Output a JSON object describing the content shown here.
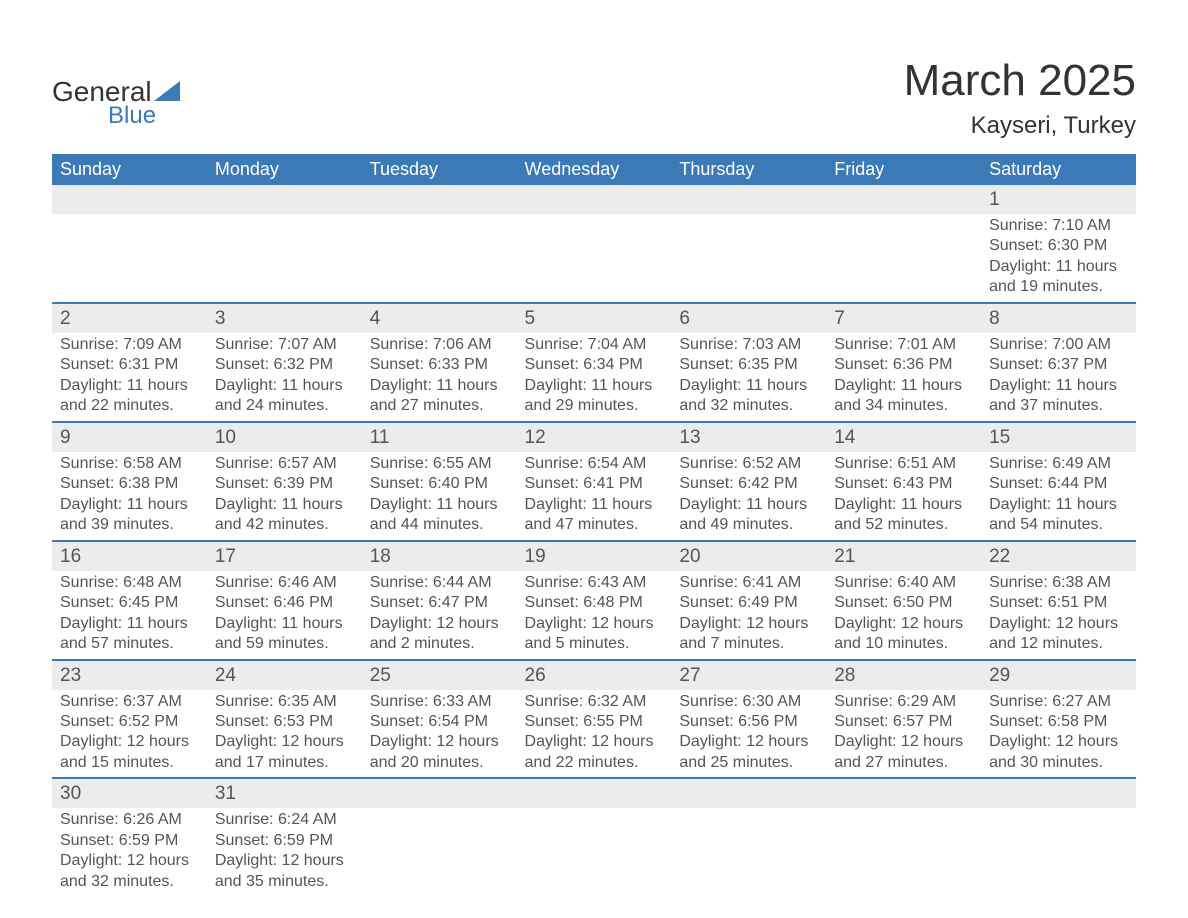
{
  "brand": {
    "name1": "General",
    "name2": "Blue"
  },
  "title": "March 2025",
  "location": "Kayseri, Turkey",
  "colors": {
    "header_bg": "#3b79b7",
    "header_text": "#ffffff",
    "daynum_bg": "#ececec",
    "border": "#3b79b7",
    "text": "#555555",
    "title_text": "#333333",
    "page_bg": "#ffffff"
  },
  "fonts": {
    "title_size": 44,
    "location_size": 24,
    "dayheader_size": 18,
    "daynum_size": 19,
    "body_size": 16
  },
  "day_headers": [
    "Sunday",
    "Monday",
    "Tuesday",
    "Wednesday",
    "Thursday",
    "Friday",
    "Saturday"
  ],
  "weeks": [
    [
      null,
      null,
      null,
      null,
      null,
      null,
      {
        "n": "1",
        "sr": "7:10 AM",
        "ss": "6:30 PM",
        "dl": "11 hours and 19 minutes."
      }
    ],
    [
      {
        "n": "2",
        "sr": "7:09 AM",
        "ss": "6:31 PM",
        "dl": "11 hours and 22 minutes."
      },
      {
        "n": "3",
        "sr": "7:07 AM",
        "ss": "6:32 PM",
        "dl": "11 hours and 24 minutes."
      },
      {
        "n": "4",
        "sr": "7:06 AM",
        "ss": "6:33 PM",
        "dl": "11 hours and 27 minutes."
      },
      {
        "n": "5",
        "sr": "7:04 AM",
        "ss": "6:34 PM",
        "dl": "11 hours and 29 minutes."
      },
      {
        "n": "6",
        "sr": "7:03 AM",
        "ss": "6:35 PM",
        "dl": "11 hours and 32 minutes."
      },
      {
        "n": "7",
        "sr": "7:01 AM",
        "ss": "6:36 PM",
        "dl": "11 hours and 34 minutes."
      },
      {
        "n": "8",
        "sr": "7:00 AM",
        "ss": "6:37 PM",
        "dl": "11 hours and 37 minutes."
      }
    ],
    [
      {
        "n": "9",
        "sr": "6:58 AM",
        "ss": "6:38 PM",
        "dl": "11 hours and 39 minutes."
      },
      {
        "n": "10",
        "sr": "6:57 AM",
        "ss": "6:39 PM",
        "dl": "11 hours and 42 minutes."
      },
      {
        "n": "11",
        "sr": "6:55 AM",
        "ss": "6:40 PM",
        "dl": "11 hours and 44 minutes."
      },
      {
        "n": "12",
        "sr": "6:54 AM",
        "ss": "6:41 PM",
        "dl": "11 hours and 47 minutes."
      },
      {
        "n": "13",
        "sr": "6:52 AM",
        "ss": "6:42 PM",
        "dl": "11 hours and 49 minutes."
      },
      {
        "n": "14",
        "sr": "6:51 AM",
        "ss": "6:43 PM",
        "dl": "11 hours and 52 minutes."
      },
      {
        "n": "15",
        "sr": "6:49 AM",
        "ss": "6:44 PM",
        "dl": "11 hours and 54 minutes."
      }
    ],
    [
      {
        "n": "16",
        "sr": "6:48 AM",
        "ss": "6:45 PM",
        "dl": "11 hours and 57 minutes."
      },
      {
        "n": "17",
        "sr": "6:46 AM",
        "ss": "6:46 PM",
        "dl": "11 hours and 59 minutes."
      },
      {
        "n": "18",
        "sr": "6:44 AM",
        "ss": "6:47 PM",
        "dl": "12 hours and 2 minutes."
      },
      {
        "n": "19",
        "sr": "6:43 AM",
        "ss": "6:48 PM",
        "dl": "12 hours and 5 minutes."
      },
      {
        "n": "20",
        "sr": "6:41 AM",
        "ss": "6:49 PM",
        "dl": "12 hours and 7 minutes."
      },
      {
        "n": "21",
        "sr": "6:40 AM",
        "ss": "6:50 PM",
        "dl": "12 hours and 10 minutes."
      },
      {
        "n": "22",
        "sr": "6:38 AM",
        "ss": "6:51 PM",
        "dl": "12 hours and 12 minutes."
      }
    ],
    [
      {
        "n": "23",
        "sr": "6:37 AM",
        "ss": "6:52 PM",
        "dl": "12 hours and 15 minutes."
      },
      {
        "n": "24",
        "sr": "6:35 AM",
        "ss": "6:53 PM",
        "dl": "12 hours and 17 minutes."
      },
      {
        "n": "25",
        "sr": "6:33 AM",
        "ss": "6:54 PM",
        "dl": "12 hours and 20 minutes."
      },
      {
        "n": "26",
        "sr": "6:32 AM",
        "ss": "6:55 PM",
        "dl": "12 hours and 22 minutes."
      },
      {
        "n": "27",
        "sr": "6:30 AM",
        "ss": "6:56 PM",
        "dl": "12 hours and 25 minutes."
      },
      {
        "n": "28",
        "sr": "6:29 AM",
        "ss": "6:57 PM",
        "dl": "12 hours and 27 minutes."
      },
      {
        "n": "29",
        "sr": "6:27 AM",
        "ss": "6:58 PM",
        "dl": "12 hours and 30 minutes."
      }
    ],
    [
      {
        "n": "30",
        "sr": "6:26 AM",
        "ss": "6:59 PM",
        "dl": "12 hours and 32 minutes."
      },
      {
        "n": "31",
        "sr": "6:24 AM",
        "ss": "6:59 PM",
        "dl": "12 hours and 35 minutes."
      },
      null,
      null,
      null,
      null,
      null
    ]
  ],
  "labels": {
    "sunrise": "Sunrise: ",
    "sunset": "Sunset: ",
    "daylight": "Daylight: "
  }
}
